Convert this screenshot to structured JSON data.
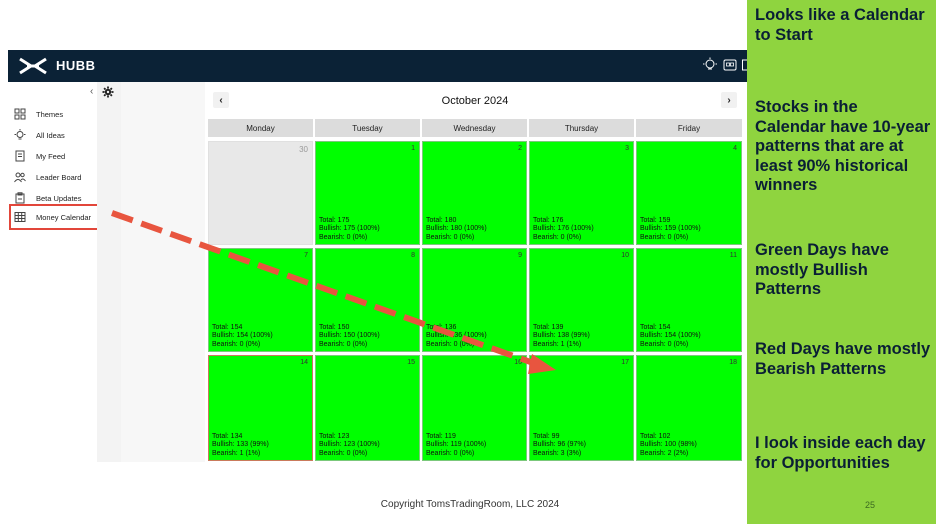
{
  "app": {
    "brand": "HUBB",
    "collapse_glyph": "‹"
  },
  "sidebar": {
    "items": [
      {
        "label": "Themes",
        "icon": "themes-icon"
      },
      {
        "label": "All Ideas",
        "icon": "lightbulb-icon"
      },
      {
        "label": "My Feed",
        "icon": "feed-icon"
      },
      {
        "label": "Leader Board",
        "icon": "people-icon"
      },
      {
        "label": "Beta Updates",
        "icon": "updates-icon"
      },
      {
        "label": "Money Calendar",
        "icon": "calendar-grid-icon",
        "active": true
      }
    ]
  },
  "calendar": {
    "month": "October 2024",
    "prev_glyph": "‹",
    "next_glyph": "›",
    "weekdays": [
      "Monday",
      "Tuesday",
      "Wednesday",
      "Thursday",
      "Friday"
    ],
    "week1": {
      "mon": {
        "num": "30"
      },
      "tue": {
        "num": "1",
        "total": "Total: 175",
        "bull": "Bullish: 175 (100%)",
        "bear": "Bearish: 0 (0%)"
      },
      "wed": {
        "num": "2",
        "total": "Total: 180",
        "bull": "Bullish: 180 (100%)",
        "bear": "Bearish: 0 (0%)"
      },
      "thu": {
        "num": "3",
        "total": "Total: 176",
        "bull": "Bullish: 176 (100%)",
        "bear": "Bearish: 0 (0%)"
      },
      "fri": {
        "num": "4",
        "total": "Total: 159",
        "bull": "Bullish: 159 (100%)",
        "bear": "Bearish: 0 (0%)"
      }
    },
    "week2": {
      "mon": {
        "num": "7",
        "total": "Total: 154",
        "bull": "Bullish: 154 (100%)",
        "bear": "Bearish: 0 (0%)"
      },
      "tue": {
        "num": "8",
        "total": "Total: 150",
        "bull": "Bullish: 150 (100%)",
        "bear": "Bearish: 0 (0%)"
      },
      "wed": {
        "num": "9",
        "total": "Total: 136",
        "bull": "Bullish: 136 (100%)",
        "bear": "Bearish: 0 (0%)"
      },
      "thu": {
        "num": "10",
        "total": "Total: 139",
        "bull": "Bullish: 138 (99%)",
        "bear": "Bearish: 1 (1%)"
      },
      "fri": {
        "num": "11",
        "total": "Total: 154",
        "bull": "Bullish: 154 (100%)",
        "bear": "Bearish: 0 (0%)"
      }
    },
    "week3": {
      "mon": {
        "num": "14",
        "total": "Total: 134",
        "bull": "Bullish: 133 (99%)",
        "bear": "Bearish: 1 (1%)"
      },
      "tue": {
        "num": "15",
        "total": "Total: 123",
        "bull": "Bullish: 123 (100%)",
        "bear": "Bearish: 0 (0%)"
      },
      "wed": {
        "num": "16",
        "total": "Total: 119",
        "bull": "Bullish: 119 (100%)",
        "bear": "Bearish: 0 (0%)"
      },
      "thu": {
        "num": "17",
        "total": "Total: 99",
        "bull": "Bullish: 96 (97%)",
        "bear": "Bearish: 3 (3%)"
      },
      "fri": {
        "num": "18",
        "total": "Total: 102",
        "bull": "Bullish: 100 (98%)",
        "bear": "Bearish: 2 (2%)"
      }
    }
  },
  "panel": {
    "notes": [
      "Looks like a Calendar to Start",
      "Stocks in the Calendar have 10-year patterns that are at least 90% historical winners",
      "Green Days have mostly Bullish Patterns",
      "Red Days have mostly Bearish Patterns",
      "I look inside each day for Opportunities"
    ],
    "slide_number": "25"
  },
  "footer": "Copyright TomsTradingRoom, LLC 2024",
  "colors": {
    "appbar": "#0b2236",
    "bullish_day": "#00ff00",
    "panel": "#8fd43f",
    "highlight": "#e2463a"
  }
}
